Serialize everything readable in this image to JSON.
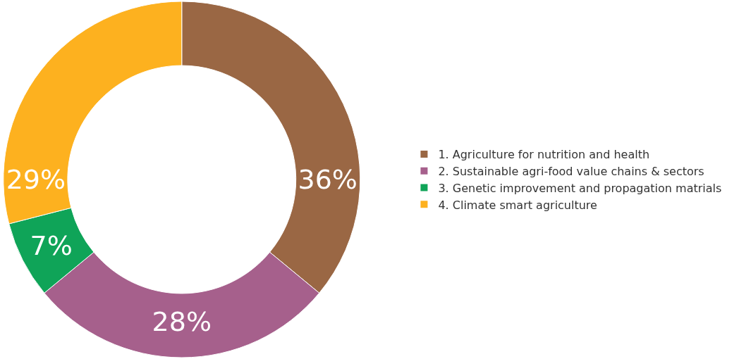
{
  "chart_data": {
    "type": "donut",
    "categories": [
      "1. Agriculture for nutrition and health",
      "2. Sustainable agri-food value chains & sectors",
      "3. Genetic improvement and propagation matrials",
      "4. Climate smart agriculture"
    ],
    "values": [
      36,
      28,
      7,
      29
    ],
    "colors": [
      "#9a6744",
      "#a6608c",
      "#0fa458",
      "#fdb11f"
    ],
    "value_labels": [
      "36%",
      "28%",
      "7%",
      "29%"
    ],
    "legend": "right"
  }
}
